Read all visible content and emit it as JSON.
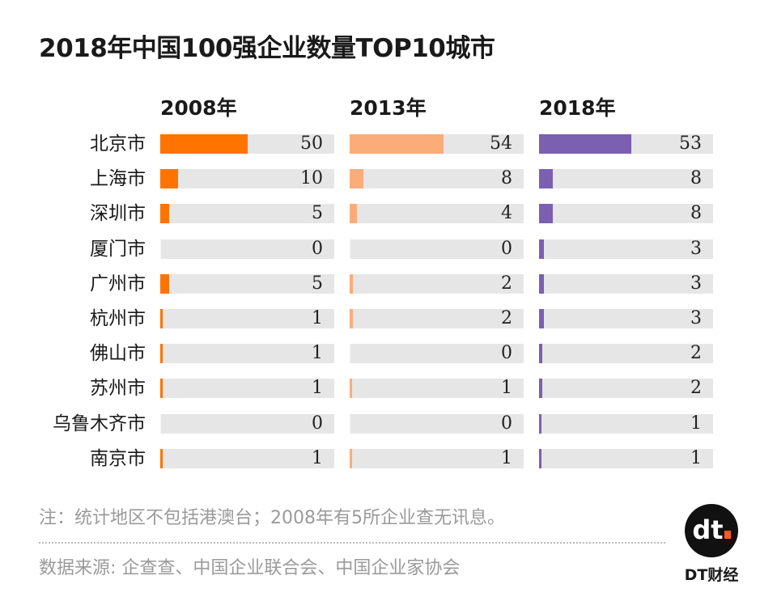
{
  "chart_data": {
    "type": "bar",
    "title": "2018年中国100强企业数量TOP10城市",
    "categories": [
      "北京市",
      "上海市",
      "深圳市",
      "厦门市",
      "广州市",
      "杭州市",
      "佛山市",
      "苏州市",
      "乌鲁木齐市",
      "南京市"
    ],
    "series": [
      {
        "name": "2008年",
        "color": "#ff7300",
        "values": [
          50,
          10,
          5,
          0,
          5,
          1,
          1,
          1,
          0,
          1
        ]
      },
      {
        "name": "2013年",
        "color": "#fbac78",
        "values": [
          54,
          8,
          4,
          0,
          2,
          2,
          0,
          1,
          0,
          1
        ]
      },
      {
        "name": "2018年",
        "color": "#7b5fb0",
        "values": [
          53,
          8,
          8,
          3,
          3,
          3,
          2,
          2,
          1,
          1
        ]
      }
    ],
    "xlim": [
      0,
      100
    ],
    "track_color": "#e6e6e6",
    "orientation": "horizontal"
  },
  "footer": {
    "note": "注：统计地区不包括港澳台；2008年有5所企业查无讯息。",
    "source": "数据来源: 企查查、中国企业联合会、中国企业家协会",
    "logo_text": "dt",
    "brand": "DT财经"
  }
}
